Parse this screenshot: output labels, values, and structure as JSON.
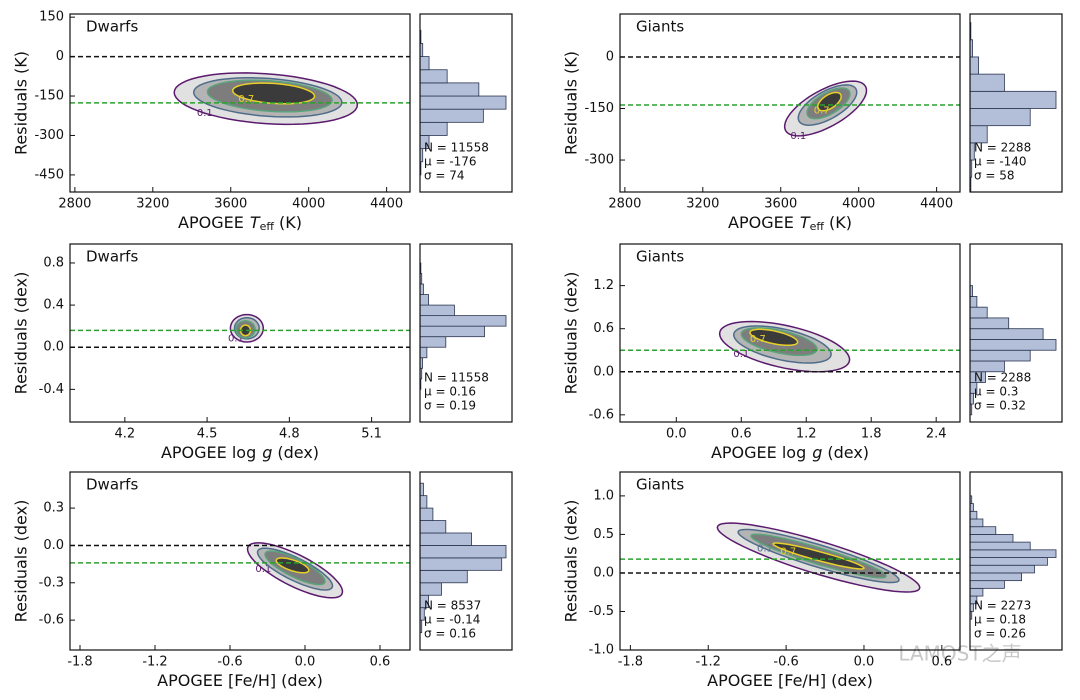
{
  "chart_data": [
    {
      "type": "hexbin",
      "label": "Dwarfs",
      "xlabel": {
        "text": "APOGEE",
        "var": "T",
        "sub": "eff",
        "unit": "(K)"
      },
      "ylabel": "Residuals (K)",
      "xlim": [
        2775,
        4520
      ],
      "xticks": [
        2800,
        3200,
        3600,
        4000,
        4400
      ],
      "ylim": [
        -515,
        162
      ],
      "yticks": [
        150,
        0,
        -150,
        -300,
        -450
      ],
      "hlines": [
        {
          "value": 0,
          "color": "#111111"
        },
        {
          "value": -176,
          "color": "#2ca02c"
        }
      ],
      "contours": [
        {
          "cx": 3780,
          "cy": -160,
          "rx": 470,
          "ry": 95,
          "slope": -0.05,
          "color": "#5b1a6e",
          "label": "0.1"
        },
        {
          "cx": 3790,
          "cy": -155,
          "rx": 380,
          "ry": 72,
          "slope": -0.05,
          "color": "#4f6d8a"
        },
        {
          "cx": 3800,
          "cy": -150,
          "rx": 320,
          "ry": 58,
          "slope": -0.05,
          "color": "#5aa37c"
        },
        {
          "cx": 3820,
          "cy": -140,
          "rx": 210,
          "ry": 38,
          "slope": -0.05,
          "color": "#e8d02a",
          "label": "0.7"
        }
      ],
      "hist": {
        "bins": [
          -450,
          -400,
          -350,
          -300,
          -250,
          -200,
          -150,
          -100,
          -50,
          0,
          50,
          100,
          150
        ],
        "counts": [
          1,
          3,
          10,
          30,
          70,
          95,
          65,
          30,
          10,
          3,
          1,
          0
        ]
      },
      "stats": [
        "N = 11558",
        "μ = -176",
        "σ = 74"
      ]
    },
    {
      "type": "hexbin",
      "label": "Giants",
      "xlabel": {
        "text": "APOGEE",
        "var": "T",
        "sub": "eff",
        "unit": "(K)"
      },
      "ylabel": "Residuals (K)",
      "xlim": [
        2775,
        4520
      ],
      "xticks": [
        2800,
        3200,
        3600,
        4000,
        4400
      ],
      "ylim": [
        -393,
        125
      ],
      "yticks": [
        0,
        -150,
        -300
      ],
      "hlines": [
        {
          "value": 0,
          "color": "#111111"
        },
        {
          "value": -140,
          "color": "#2ca02c"
        }
      ],
      "contours": [
        {
          "cx": 3830,
          "cy": -150,
          "rx": 210,
          "ry": 60,
          "slope": 0.25,
          "color": "#5b1a6e",
          "label": "0.1"
        },
        {
          "cx": 3840,
          "cy": -140,
          "rx": 150,
          "ry": 45,
          "slope": 0.25,
          "color": "#4f6d8a"
        },
        {
          "cx": 3845,
          "cy": -135,
          "rx": 110,
          "ry": 35,
          "slope": 0.25,
          "color": "#5aa37c"
        },
        {
          "cx": 3850,
          "cy": -130,
          "rx": 60,
          "ry": 22,
          "slope": 0.25,
          "color": "#e8d02a",
          "label": "0.7"
        }
      ],
      "hist": {
        "bins": [
          -400,
          -350,
          -300,
          -250,
          -200,
          -150,
          -100,
          -50,
          0,
          50,
          100
        ],
        "counts": [
          1,
          2,
          5,
          20,
          70,
          100,
          40,
          10,
          3,
          1
        ]
      },
      "stats": [
        "N = 2288",
        "μ = -140",
        "σ = 58"
      ]
    },
    {
      "type": "hexbin",
      "label": "Dwarfs",
      "xlabel": {
        "text": "APOGEE  log",
        "var": "g",
        "unit": "(dex)"
      },
      "ylabel": "Residuals (dex)",
      "xlim": [
        4.0,
        5.24
      ],
      "xticks": [
        4.2,
        4.5,
        4.8,
        5.1
      ],
      "ylim": [
        -0.71,
        0.98
      ],
      "yticks": [
        0.8,
        0.4,
        {
          "value": 0,
          "label": "0.0"
        },
        -0.4
      ],
      "hlines": [
        {
          "value": 0,
          "color": "#111111"
        },
        {
          "value": 0.16,
          "color": "#2ca02c"
        }
      ],
      "contours": [
        {
          "cx": 4.645,
          "cy": 0.18,
          "rx": 0.06,
          "ry": 0.13,
          "slope": 0,
          "color": "#5b1a6e",
          "label": "0.1"
        },
        {
          "cx": 4.645,
          "cy": 0.18,
          "rx": 0.045,
          "ry": 0.1,
          "slope": 0,
          "color": "#4f6d8a"
        },
        {
          "cx": 4.64,
          "cy": 0.17,
          "rx": 0.035,
          "ry": 0.08,
          "slope": 0,
          "color": "#5aa37c"
        },
        {
          "cx": 4.64,
          "cy": 0.16,
          "rx": 0.018,
          "ry": 0.05,
          "slope": 0,
          "color": "#e8d02a"
        }
      ],
      "hist": {
        "bins": [
          -0.4,
          -0.3,
          -0.2,
          -0.1,
          0.0,
          0.1,
          0.2,
          0.3,
          0.4,
          0.5,
          0.6,
          0.7,
          0.8
        ],
        "counts": [
          1,
          2,
          3,
          8,
          30,
          75,
          100,
          40,
          10,
          4,
          2,
          1
        ]
      },
      "stats": [
        "N = 11558",
        "μ = 0.16",
        "σ = 0.19"
      ]
    },
    {
      "type": "hexbin",
      "label": "Giants",
      "xlabel": {
        "text": "APOGEE  log",
        "var": "g",
        "unit": "(dex)"
      },
      "ylabel": "Residuals (dex)",
      "xlim": [
        -0.52,
        2.62
      ],
      "xticks": [
        {
          "value": 0,
          "label": "0.0"
        },
        0.6,
        1.2,
        1.8,
        2.4
      ],
      "ylim": [
        -0.7,
        1.78
      ],
      "yticks": [
        1.2,
        0.6,
        {
          "value": 0,
          "label": "0.0"
        },
        -0.6
      ],
      "hlines": [
        {
          "value": 0,
          "color": "#111111"
        },
        {
          "value": 0.3,
          "color": "#2ca02c"
        }
      ],
      "contours": [
        {
          "cx": 1.0,
          "cy": 0.35,
          "rx": 0.6,
          "ry": 0.3,
          "slope": -0.3,
          "color": "#5b1a6e",
          "label": "0.1"
        },
        {
          "cx": 0.98,
          "cy": 0.38,
          "rx": 0.45,
          "ry": 0.22,
          "slope": -0.3,
          "color": "#4f6d8a"
        },
        {
          "cx": 0.95,
          "cy": 0.42,
          "rx": 0.35,
          "ry": 0.16,
          "slope": -0.3,
          "color": "#5aa37c"
        },
        {
          "cx": 0.9,
          "cy": 0.48,
          "rx": 0.22,
          "ry": 0.09,
          "slope": -0.3,
          "color": "#e8d02a",
          "label": "0.7"
        }
      ],
      "hist": {
        "bins": [
          -0.6,
          -0.45,
          -0.3,
          -0.15,
          0,
          0.15,
          0.3,
          0.45,
          0.6,
          0.75,
          0.9,
          1.05,
          1.2
        ],
        "counts": [
          2,
          4,
          8,
          18,
          40,
          70,
          100,
          85,
          45,
          20,
          8,
          3
        ]
      },
      "stats": [
        "N = 2288",
        "μ = 0.3",
        "σ = 0.32"
      ]
    },
    {
      "type": "hexbin",
      "label": "Dwarfs",
      "xlabel": {
        "text": "APOGEE  [Fe/H] (dex)"
      },
      "ylabel": "Residuals (dex)",
      "xlim": [
        -1.88,
        0.84
      ],
      "xticks": [
        -1.8,
        -1.2,
        -0.6,
        {
          "value": 0,
          "label": "0.0"
        },
        0.6
      ],
      "ylim": [
        -0.84,
        0.59
      ],
      "yticks": [
        0.3,
        {
          "value": 0,
          "label": "0.0"
        },
        -0.3,
        -0.6
      ],
      "hlines": [
        {
          "value": 0,
          "color": "#111111"
        },
        {
          "value": -0.14,
          "color": "#2ca02c"
        }
      ],
      "contours": [
        {
          "cx": -0.08,
          "cy": -0.2,
          "rx": 0.38,
          "ry": 0.14,
          "slope": -0.45,
          "color": "#5b1a6e",
          "label": "0.1"
        },
        {
          "cx": -0.08,
          "cy": -0.19,
          "rx": 0.3,
          "ry": 0.1,
          "slope": -0.45,
          "color": "#4f6d8a"
        },
        {
          "cx": -0.08,
          "cy": -0.18,
          "rx": 0.24,
          "ry": 0.08,
          "slope": -0.45,
          "color": "#5aa37c"
        },
        {
          "cx": -0.1,
          "cy": -0.16,
          "rx": 0.13,
          "ry": 0.045,
          "slope": -0.3,
          "color": "#e8d02a"
        }
      ],
      "hist": {
        "bins": [
          -0.7,
          -0.6,
          -0.5,
          -0.4,
          -0.3,
          -0.2,
          -0.1,
          0.0,
          0.1,
          0.2,
          0.3,
          0.4,
          0.5
        ],
        "counts": [
          2,
          5,
          10,
          25,
          55,
          95,
          100,
          60,
          30,
          15,
          8,
          4
        ]
      },
      "stats": [
        "N = 8537",
        "μ = -0.14",
        "σ = 0.16"
      ]
    },
    {
      "type": "hexbin",
      "label": "Giants",
      "xlabel": {
        "text": "APOGEE  [Fe/H] (dex)"
      },
      "ylabel": "Residuals (dex)",
      "xlim": [
        -1.88,
        0.74
      ],
      "xticks": [
        -1.8,
        -1.2,
        -0.6,
        {
          "value": 0,
          "label": "0.0"
        },
        0.6
      ],
      "ylim": [
        -1.0,
        1.31
      ],
      "yticks": [
        {
          "value": 1,
          "label": "1.0"
        },
        0.5,
        {
          "value": 0,
          "label": "0.0"
        },
        -0.5,
        {
          "value": -1,
          "label": "-1.0"
        }
      ],
      "hlines": [
        {
          "value": 0,
          "color": "#111111"
        },
        {
          "value": 0.18,
          "color": "#2ca02c"
        }
      ],
      "contours": [
        {
          "cx": -0.35,
          "cy": 0.2,
          "rx": 0.78,
          "ry": 0.22,
          "slope": -0.5,
          "color": "#5b1a6e"
        },
        {
          "cx": -0.35,
          "cy": 0.22,
          "rx": 0.62,
          "ry": 0.15,
          "slope": -0.5,
          "color": "#4f6d8a",
          "label": "0.1"
        },
        {
          "cx": -0.35,
          "cy": 0.22,
          "rx": 0.52,
          "ry": 0.11,
          "slope": -0.5,
          "color": "#5aa37c"
        },
        {
          "cx": -0.35,
          "cy": 0.22,
          "rx": 0.35,
          "ry": 0.06,
          "slope": -0.45,
          "color": "#e8d02a",
          "label": "0.7"
        }
      ],
      "hist": {
        "bins": [
          -0.6,
          -0.5,
          -0.4,
          -0.3,
          -0.2,
          -0.1,
          0.0,
          0.1,
          0.2,
          0.3,
          0.4,
          0.5,
          0.6,
          0.7,
          0.8,
          0.9,
          1.0
        ],
        "counts": [
          2,
          4,
          8,
          15,
          40,
          60,
          75,
          90,
          100,
          70,
          50,
          30,
          15,
          8,
          4,
          2
        ]
      },
      "stats": [
        "N = 2273",
        "μ = 0.18",
        "σ = 0.26"
      ]
    }
  ],
  "watermark": "LAMOST之声"
}
